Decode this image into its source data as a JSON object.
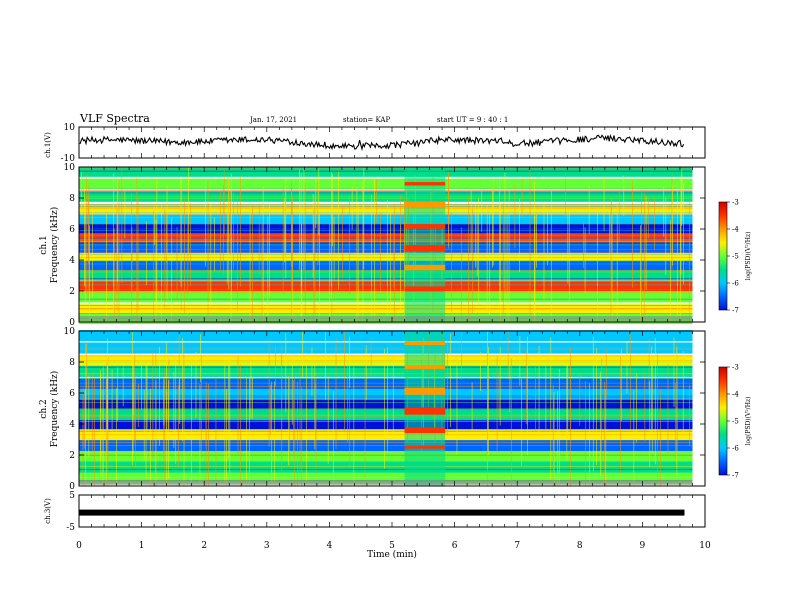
{
  "header": {
    "title": "VLF Spectra",
    "date": "Jan. 17, 2021",
    "station": "station= KAP",
    "start": "start  UT  =   9 : 40 : 1"
  },
  "colorbar": {
    "label": "log(PSD)(V²/Hz)",
    "ticks": [
      "-3",
      "-4",
      "-5",
      "-6",
      "-7"
    ],
    "colors": [
      "#d10000",
      "#ff3300",
      "#ff9900",
      "#ffee00",
      "#66ff33",
      "#00dd88",
      "#00c8ff",
      "#0066ff",
      "#0010d8"
    ]
  },
  "chart_data": [
    {
      "type": "line",
      "ylabel": "ch.1(V)",
      "ylim": [
        -10,
        10
      ],
      "yticks": [
        "10",
        "-10"
      ],
      "xlim": [
        0,
        10
      ]
    },
    {
      "type": "heatmap",
      "ylabel": "ch.1 Frequency (kHz)",
      "ylabel_line1": "ch.1",
      "ylabel_line2": "Frequency  (kHz)",
      "ylim": [
        0,
        10
      ],
      "yticks": [
        "10",
        "8",
        "6",
        "4",
        "2",
        "0"
      ],
      "xlim": [
        0,
        10
      ],
      "bands_khz": [
        {
          "f": 9.7,
          "color": "#00dd88"
        },
        {
          "f": 8.9,
          "color": "#66ff33"
        },
        {
          "f": 8.1,
          "color": "#00dd88"
        },
        {
          "f": 7.3,
          "color": "#ffee00"
        },
        {
          "f": 6.6,
          "color": "#00c8ff"
        },
        {
          "f": 6.0,
          "color": "#0010d8"
        },
        {
          "f": 5.4,
          "color": "#ff3300"
        },
        {
          "f": 4.8,
          "color": "#0066ff"
        },
        {
          "f": 4.1,
          "color": "#ffee00"
        },
        {
          "f": 3.6,
          "color": "#0066ff"
        },
        {
          "f": 3.0,
          "color": "#00dd88"
        },
        {
          "f": 2.3,
          "color": "#ff3300"
        },
        {
          "f": 1.6,
          "color": "#66ff33"
        },
        {
          "f": 0.8,
          "color": "#ffee00"
        },
        {
          "f": 0.2,
          "color": "#66ff33"
        }
      ],
      "event_min": [
        5.2,
        5.85
      ]
    },
    {
      "type": "heatmap",
      "ylabel": "ch.2 Frequency (kHz)",
      "ylabel_line1": "ch.2",
      "ylabel_line2": "Frequency  (kHz)",
      "ylim": [
        0,
        10
      ],
      "yticks": [
        "10",
        "8",
        "6",
        "4",
        "2",
        "0"
      ],
      "xlim": [
        0,
        10
      ],
      "bands_khz": [
        {
          "f": 9.7,
          "color": "#00c8ff"
        },
        {
          "f": 8.9,
          "color": "#00c8ff"
        },
        {
          "f": 8.1,
          "color": "#ffee00"
        },
        {
          "f": 7.4,
          "color": "#00dd88"
        },
        {
          "f": 6.6,
          "color": "#0066ff"
        },
        {
          "f": 5.9,
          "color": "#00c8ff"
        },
        {
          "f": 5.2,
          "color": "#0010d8"
        },
        {
          "f": 4.6,
          "color": "#00dd88"
        },
        {
          "f": 3.9,
          "color": "#0010d8"
        },
        {
          "f": 3.3,
          "color": "#ffee00"
        },
        {
          "f": 2.6,
          "color": "#0066ff"
        },
        {
          "f": 1.9,
          "color": "#66ff33"
        },
        {
          "f": 1.2,
          "color": "#00dd88"
        },
        {
          "f": 0.5,
          "color": "#66ff33"
        }
      ],
      "event_min": [
        5.2,
        5.85
      ]
    },
    {
      "type": "line",
      "ylabel": "ch.3(V)",
      "ylim": [
        -5,
        5
      ],
      "yticks": [
        "5",
        "-5"
      ],
      "xlim": [
        0,
        10
      ],
      "value": -0.5
    }
  ],
  "xaxis": {
    "label": "Time  (min)",
    "ticks": [
      "0",
      "1",
      "2",
      "3",
      "4",
      "5",
      "6",
      "7",
      "8",
      "9",
      "10"
    ],
    "data_end_min": 9.8
  }
}
